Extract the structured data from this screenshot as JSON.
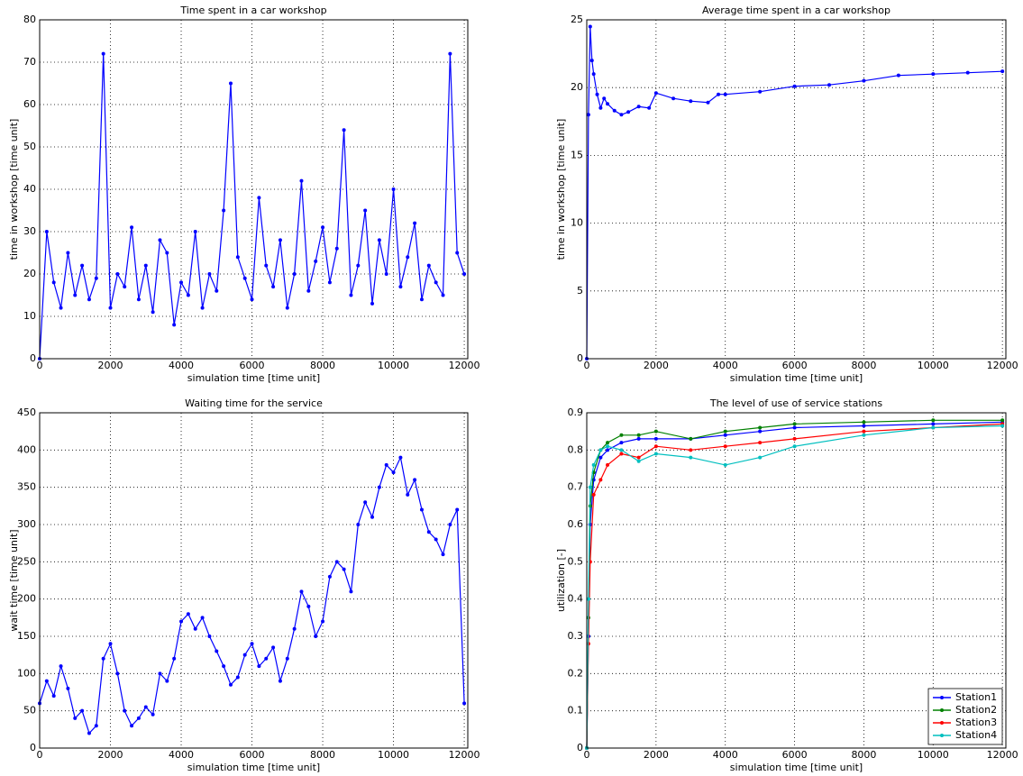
{
  "chart_data": [
    {
      "type": "line",
      "title": "Time spent in a car workshop",
      "xlabel": "simulation time [time unit]",
      "ylabel": "time in workshop [time unit]",
      "x": [
        0,
        200,
        400,
        600,
        800,
        1000,
        1200,
        1400,
        1600,
        1800,
        2000,
        2200,
        2400,
        2600,
        2800,
        3000,
        3200,
        3400,
        3600,
        3800,
        4000,
        4200,
        4400,
        4600,
        4800,
        5000,
        5200,
        5400,
        5600,
        5800,
        6000,
        6200,
        6400,
        6600,
        6800,
        7000,
        7200,
        7400,
        7600,
        7800,
        8000,
        8200,
        8400,
        8600,
        8800,
        9000,
        9200,
        9400,
        9600,
        9800,
        10000,
        10200,
        10400,
        10600,
        10800,
        11000,
        11200,
        11400,
        11600,
        11800,
        12000
      ],
      "series": [
        {
          "color": "#0000ff",
          "values": [
            0,
            30,
            18,
            12,
            25,
            15,
            22,
            14,
            19,
            72,
            12,
            20,
            17,
            31,
            14,
            22,
            11,
            28,
            25,
            8,
            18,
            15,
            30,
            12,
            20,
            16,
            35,
            65,
            24,
            19,
            14,
            38,
            22,
            17,
            28,
            12,
            20,
            42,
            16,
            23,
            31,
            18,
            26,
            54,
            15,
            22,
            35,
            13,
            28,
            20,
            40,
            17,
            24,
            32,
            14,
            22,
            18,
            15,
            72,
            25,
            20
          ]
        }
      ],
      "xlim": [
        0,
        12100
      ],
      "ylim": [
        0,
        80
      ],
      "xticks": [
        0,
        2000,
        4000,
        6000,
        8000,
        10000,
        12000
      ],
      "yticks": [
        0,
        10,
        20,
        30,
        40,
        50,
        60,
        70,
        80
      ],
      "grid": true
    },
    {
      "type": "line",
      "title": "Average time spent in a car workshop",
      "xlabel": "simulation time [time unit]",
      "ylabel": "time in workshop [time unit]",
      "x": [
        0,
        50,
        100,
        150,
        200,
        300,
        400,
        500,
        600,
        800,
        1000,
        1200,
        1500,
        1800,
        2000,
        2500,
        3000,
        3500,
        3800,
        4000,
        5000,
        6000,
        7000,
        8000,
        9000,
        10000,
        11000,
        12000
      ],
      "series": [
        {
          "color": "#0000ff",
          "values": [
            0,
            18,
            24.5,
            22,
            21,
            19.5,
            18.5,
            19.2,
            18.8,
            18.3,
            18.0,
            18.2,
            18.6,
            18.5,
            19.6,
            19.2,
            19.0,
            18.9,
            19.5,
            19.5,
            19.7,
            20.1,
            20.2,
            20.5,
            20.9,
            21.0,
            21.1,
            21.2
          ]
        }
      ],
      "xlim": [
        0,
        12100
      ],
      "ylim": [
        0,
        25
      ],
      "xticks": [
        0,
        2000,
        4000,
        6000,
        8000,
        10000,
        12000
      ],
      "yticks": [
        0,
        5,
        10,
        15,
        20,
        25
      ],
      "grid": true
    },
    {
      "type": "line",
      "title": "Waiting time for the service",
      "xlabel": "simulation time [time unit]",
      "ylabel": "wait time [time unit]",
      "x": [
        0,
        200,
        400,
        600,
        800,
        1000,
        1200,
        1400,
        1600,
        1800,
        2000,
        2200,
        2400,
        2600,
        2800,
        3000,
        3200,
        3400,
        3600,
        3800,
        4000,
        4200,
        4400,
        4600,
        4800,
        5000,
        5200,
        5400,
        5600,
        5800,
        6000,
        6200,
        6400,
        6600,
        6800,
        7000,
        7200,
        7400,
        7600,
        7800,
        8000,
        8200,
        8400,
        8600,
        8800,
        9000,
        9200,
        9400,
        9600,
        9800,
        10000,
        10200,
        10400,
        10600,
        10800,
        11000,
        11200,
        11400,
        11600,
        11800,
        12000
      ],
      "series": [
        {
          "color": "#0000ff",
          "values": [
            60,
            90,
            70,
            110,
            80,
            40,
            50,
            20,
            30,
            120,
            140,
            100,
            50,
            30,
            40,
            55,
            45,
            100,
            90,
            120,
            170,
            180,
            160,
            175,
            150,
            130,
            110,
            85,
            95,
            125,
            140,
            110,
            120,
            135,
            90,
            120,
            160,
            210,
            190,
            150,
            170,
            230,
            250,
            240,
            210,
            300,
            330,
            310,
            350,
            380,
            370,
            390,
            340,
            360,
            320,
            290,
            280,
            260,
            300,
            320,
            60
          ]
        }
      ],
      "xlim": [
        0,
        12100
      ],
      "ylim": [
        0,
        450
      ],
      "xticks": [
        0,
        2000,
        4000,
        6000,
        8000,
        10000,
        12000
      ],
      "yticks": [
        0,
        50,
        100,
        150,
        200,
        250,
        300,
        350,
        400,
        450
      ],
      "grid": true
    },
    {
      "type": "line",
      "title": "The level of use of service stations",
      "xlabel": "simulation time [time unit]",
      "ylabel": "utilization [-]",
      "x": [
        0,
        50,
        100,
        200,
        400,
        600,
        1000,
        1500,
        2000,
        3000,
        4000,
        5000,
        6000,
        8000,
        10000,
        12000
      ],
      "series": [
        {
          "name": "Station1",
          "color": "#0000ff",
          "values": [
            0,
            0.3,
            0.6,
            0.72,
            0.78,
            0.8,
            0.82,
            0.83,
            0.83,
            0.83,
            0.84,
            0.85,
            0.86,
            0.865,
            0.87,
            0.875
          ]
        },
        {
          "name": "Station2",
          "color": "#008000",
          "values": [
            0,
            0.35,
            0.65,
            0.74,
            0.8,
            0.82,
            0.84,
            0.84,
            0.85,
            0.83,
            0.85,
            0.86,
            0.87,
            0.875,
            0.88,
            0.88
          ]
        },
        {
          "name": "Station3",
          "color": "#ff0000",
          "values": [
            0,
            0.28,
            0.5,
            0.68,
            0.72,
            0.76,
            0.79,
            0.78,
            0.81,
            0.8,
            0.81,
            0.82,
            0.83,
            0.85,
            0.86,
            0.87
          ]
        },
        {
          "name": "Station4",
          "color": "#00bfbf",
          "values": [
            0,
            0.4,
            0.7,
            0.76,
            0.8,
            0.81,
            0.8,
            0.77,
            0.79,
            0.78,
            0.76,
            0.78,
            0.81,
            0.84,
            0.86,
            0.865
          ]
        }
      ],
      "xlim": [
        0,
        12100
      ],
      "ylim": [
        0,
        0.9
      ],
      "xticks": [
        0,
        2000,
        4000,
        6000,
        8000,
        10000,
        12000
      ],
      "yticks": [
        0,
        0.1,
        0.2,
        0.3,
        0.4,
        0.5,
        0.6,
        0.7,
        0.8,
        0.9
      ],
      "grid": true,
      "legend": "lower right"
    }
  ]
}
